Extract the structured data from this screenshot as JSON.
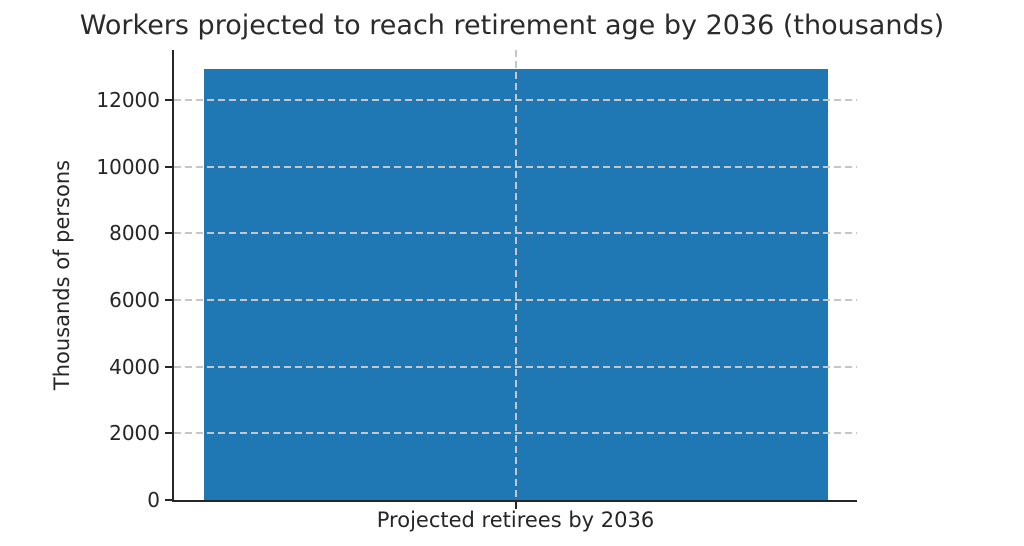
{
  "chart_data": {
    "type": "bar",
    "title": "Workers projected to reach retirement age by 2036 (thousands)",
    "categories": [
      "Projected retirees by 2036"
    ],
    "values": [
      12940
    ],
    "xlabel": "",
    "ylabel": "Thousands of persons",
    "ylim": [
      0,
      13500
    ],
    "yticks": [
      0,
      2000,
      4000,
      6000,
      8000,
      10000,
      12000
    ],
    "legend": "none",
    "grid": "dashed, drawn above bar",
    "colors": {
      "bar": "#1f77b4",
      "grid": "#c6c6c6",
      "spine": "#262626",
      "text": "#262626",
      "background": "#ffffff"
    }
  }
}
